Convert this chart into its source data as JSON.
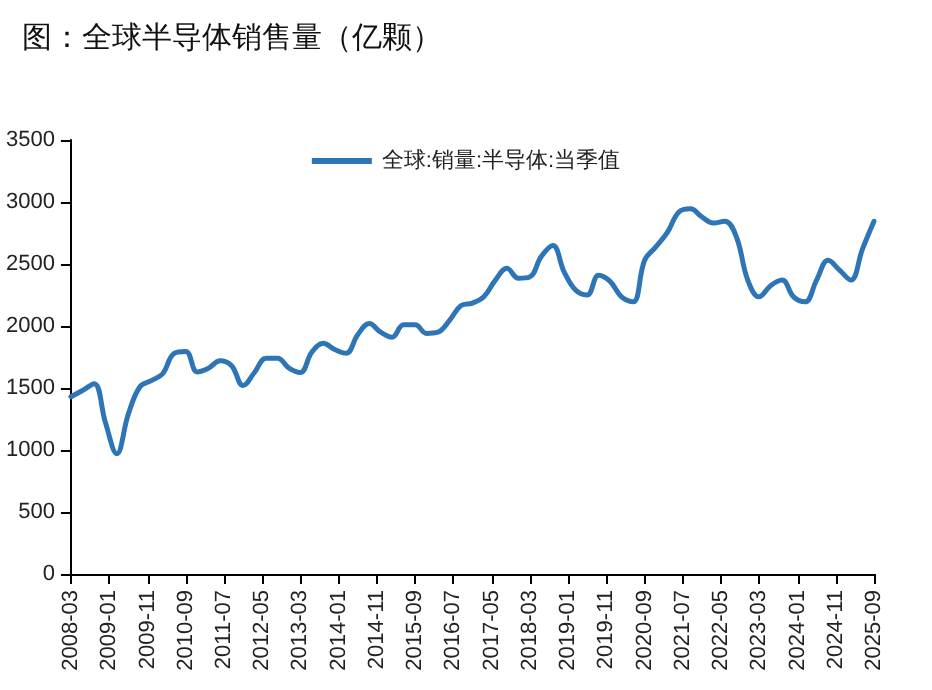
{
  "chart_data": {
    "type": "line",
    "title": "图：全球半导体销售量（亿颗）",
    "x": [
      "2008-03",
      "2008-06",
      "2008-09",
      "2008-12",
      "2009-03",
      "2009-06",
      "2009-09",
      "2009-12",
      "2010-03",
      "2010-06",
      "2010-09",
      "2010-12",
      "2011-03",
      "2011-06",
      "2011-09",
      "2011-12",
      "2012-03",
      "2012-06",
      "2012-09",
      "2012-12",
      "2013-03",
      "2013-06",
      "2013-09",
      "2013-12",
      "2014-03",
      "2014-06",
      "2014-09",
      "2014-12",
      "2015-03",
      "2015-06",
      "2015-09",
      "2015-12",
      "2016-03",
      "2016-06",
      "2016-09",
      "2016-12",
      "2017-03",
      "2017-06",
      "2017-09",
      "2017-12",
      "2018-03",
      "2018-06",
      "2018-09",
      "2018-12",
      "2019-03",
      "2019-06",
      "2019-09",
      "2019-12",
      "2020-03",
      "2020-06",
      "2020-09",
      "2020-12",
      "2021-03",
      "2021-06",
      "2021-09",
      "2021-12",
      "2022-03",
      "2022-06",
      "2022-09",
      "2022-12",
      "2023-03",
      "2023-06",
      "2023-09",
      "2023-12",
      "2024-03",
      "2024-06",
      "2024-09",
      "2024-12",
      "2025-03",
      "2025-06",
      "2025-09"
    ],
    "series": [
      {
        "name": "全球:销量:半导体:当季值",
        "color": "#2e75b6",
        "values": [
          1430,
          1480,
          1535,
          1220,
          970,
          1290,
          1510,
          1560,
          1615,
          1780,
          1795,
          1630,
          1660,
          1720,
          1680,
          1520,
          1625,
          1740,
          1740,
          1660,
          1625,
          1790,
          1860,
          1810,
          1780,
          1930,
          2020,
          1950,
          1910,
          2010,
          2010,
          1940,
          1950,
          2045,
          2165,
          2185,
          2235,
          2370,
          2465,
          2385,
          2395,
          2560,
          2650,
          2435,
          2290,
          2250,
          2410,
          2360,
          2235,
          2195,
          2530,
          2640,
          2755,
          2920,
          2945,
          2880,
          2830,
          2845,
          2720,
          2370,
          2235,
          2325,
          2370,
          2235,
          2195,
          2370,
          2530,
          2450,
          2370,
          2620,
          2845
        ]
      }
    ],
    "xlim": [
      "2008-03",
      "2025-09"
    ],
    "xticks": [
      "2008-03",
      "2009-01",
      "2009-11",
      "2010-09",
      "2011-07",
      "2012-05",
      "2013-03",
      "2014-01",
      "2014-11",
      "2015-09",
      "2016-07",
      "2017-05",
      "2018-03",
      "2019-01",
      "2019-11",
      "2020-09",
      "2021-07",
      "2022-05",
      "2023-03",
      "2024-01",
      "2024-11",
      "2025-09"
    ],
    "ylim": [
      0,
      3500
    ],
    "yticks": [
      0,
      500,
      1000,
      1500,
      2000,
      2500,
      3000,
      3500
    ],
    "grid": false,
    "legend": "top",
    "marker": "none",
    "line_style": "solid"
  }
}
